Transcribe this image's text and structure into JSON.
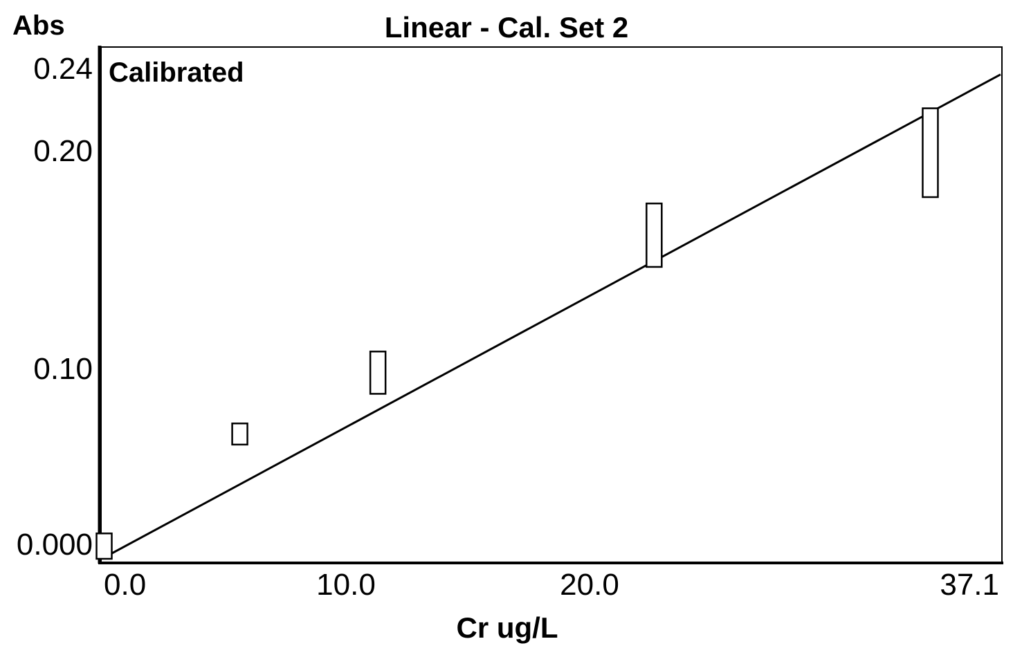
{
  "chart_data": {
    "type": "scatter",
    "title": "Linear - Cal. Set 2",
    "annotation": "Calibrated",
    "xlabel": "Cr ug/L",
    "ylabel": "Abs",
    "xlim": [
      0,
      37.1
    ],
    "ylim": [
      0,
      0.24
    ],
    "x_tick_labels": [
      "0.0",
      "10.0",
      "20.0",
      "37.1"
    ],
    "y_ticks": [
      {
        "value": 0.0,
        "label": "0.000"
      },
      {
        "value": 0.1,
        "label": "0.10"
      },
      {
        "value": 0.2,
        "label": "0.20"
      },
      {
        "value": 0.24,
        "label": "0.24"
      }
    ],
    "grid": false,
    "legend": "none",
    "marker": "open-rectangle",
    "points": [
      {
        "x": 0.1,
        "y_low": 0.0,
        "y_high": 0.012
      },
      {
        "x": 5.7,
        "y_low": 0.054,
        "y_high": 0.064
      },
      {
        "x": 11.4,
        "y_low": 0.078,
        "y_high": 0.098
      },
      {
        "x": 22.8,
        "y_low": 0.138,
        "y_high": 0.168
      },
      {
        "x": 34.2,
        "y_low": 0.171,
        "y_high": 0.213
      }
    ],
    "fit_line": {
      "type": "linear",
      "x": [
        0,
        37.1
      ],
      "y": [
        0,
        0.229
      ]
    },
    "colors": {
      "axis": "#000000",
      "line": "#000000",
      "marker_stroke": "#000000",
      "background": "#ffffff"
    }
  }
}
